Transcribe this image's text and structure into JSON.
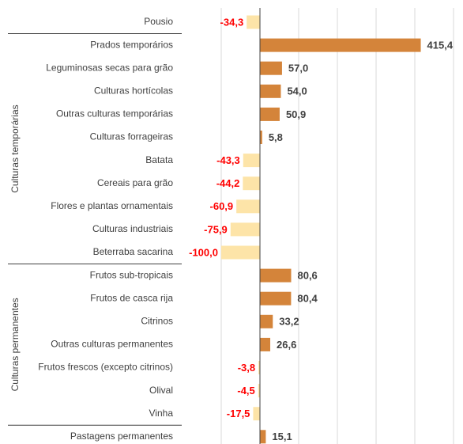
{
  "chart_data": {
    "type": "bar",
    "orientation": "horizontal",
    "positive_color": "#d4843a",
    "negative_color": "#fde4a8",
    "positive_label_color": "#404040",
    "negative_label_color": "#ff0000",
    "xlim": [
      -100,
      500
    ],
    "xticks": [
      -100,
      0,
      100,
      200,
      300,
      400,
      500
    ],
    "grid": true,
    "groups": [
      {
        "categories": [
          "Pousio"
        ],
        "values": [
          -34.3
        ],
        "value_labels": [
          "-34,3"
        ]
      },
      {
        "name": "Culturas temporárias",
        "categories": [
          "Prados temporários",
          "Leguminosas secas para grão",
          "Culturas hortícolas",
          "Outras culturas temporárias",
          "Culturas forrageiras",
          "Batata",
          "Cereais para grão",
          "Flores e plantas ornamentais",
          "Culturas industriais",
          "Beterraba sacarina"
        ],
        "values": [
          415.4,
          57.0,
          54.0,
          50.9,
          5.8,
          -43.3,
          -44.2,
          -60.9,
          -75.9,
          -100.0
        ],
        "value_labels": [
          "415,4",
          "57,0",
          "54,0",
          "50,9",
          "5,8",
          "-43,3",
          "-44,2",
          "-60,9",
          "-75,9",
          "-100,0"
        ]
      },
      {
        "name": "Culturas permanentes",
        "categories": [
          "Frutos sub-tropicais",
          "Frutos de casca rija",
          "Citrinos",
          "Outras culturas permanentes",
          "Frutos frescos (excepto citrinos)",
          "Olival",
          "Vinha"
        ],
        "values": [
          80.6,
          80.4,
          33.2,
          26.6,
          -3.8,
          -4.5,
          -17.5
        ],
        "value_labels": [
          "80,6",
          "80,4",
          "33,2",
          "26,6",
          "-3,8",
          "-4,5",
          "-17,5"
        ]
      },
      {
        "categories": [
          "Pastagens permanentes"
        ],
        "values": [
          15.1
        ],
        "value_labels": [
          "15,1"
        ]
      }
    ]
  }
}
